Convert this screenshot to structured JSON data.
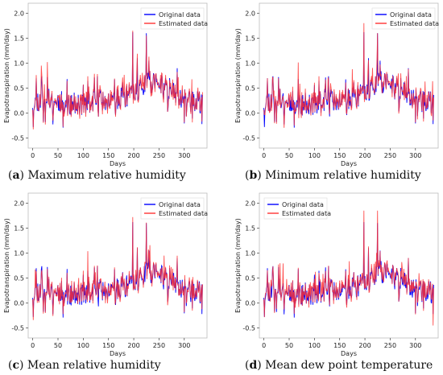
{
  "chart_data": [
    {
      "type": "line",
      "caption": {
        "letter": "(a)",
        "text": "Maximum relative humidity"
      },
      "xlabel": "Days",
      "ylabel": "Evapotranspiration (mm/day)",
      "xlim": [
        -9,
        345
      ],
      "ylim": [
        -0.7,
        2.2
      ],
      "xticks": [
        0,
        50,
        100,
        150,
        200,
        250,
        300
      ],
      "yticks": [
        -0.5,
        0.0,
        0.5,
        1.0,
        1.5,
        2.0
      ],
      "legend": "top-right",
      "series": [
        {
          "name": "Original data",
          "color": "#0000ff",
          "seed": 11
        },
        {
          "name": "Estimated data",
          "color": "#ff3333",
          "seed": 21
        }
      ]
    },
    {
      "type": "line",
      "caption": {
        "letter": "(b)",
        "text": "Minimum relative humidity"
      },
      "xlabel": "Days",
      "ylabel": "Evapotranspiration (mm/day)",
      "xlim": [
        -9,
        345
      ],
      "ylim": [
        -0.7,
        2.2
      ],
      "xticks": [
        0,
        50,
        100,
        150,
        200,
        250,
        300
      ],
      "yticks": [
        -0.5,
        0.0,
        0.5,
        1.0,
        1.5,
        2.0
      ],
      "legend": "top-right",
      "series": [
        {
          "name": "Original data",
          "color": "#0000ff",
          "seed": 11
        },
        {
          "name": "Estimated data",
          "color": "#ff3333",
          "seed": 37
        }
      ]
    },
    {
      "type": "line",
      "caption": {
        "letter": "(c)",
        "text": "Mean relative humidity"
      },
      "xlabel": "Days",
      "ylabel": "Evapotranspiration (mm/day)",
      "xlim": [
        -9,
        345
      ],
      "ylim": [
        -0.7,
        2.2
      ],
      "xticks": [
        0,
        50,
        100,
        150,
        200,
        250,
        300
      ],
      "yticks": [
        -0.5,
        0.0,
        0.5,
        1.0,
        1.5,
        2.0
      ],
      "legend": "top-right",
      "series": [
        {
          "name": "Original data",
          "color": "#0000ff",
          "seed": 11
        },
        {
          "name": "Estimated data",
          "color": "#ff3333",
          "seed": 53
        }
      ]
    },
    {
      "type": "line",
      "caption": {
        "letter": "(d)",
        "text": "Mean dew point temperature"
      },
      "xlabel": "Days",
      "ylabel": "Evapotranspiration (mm/day)",
      "xlim": [
        -9,
        345
      ],
      "ylim": [
        -0.7,
        2.2
      ],
      "xticks": [
        0,
        50,
        100,
        150,
        200,
        250,
        300
      ],
      "yticks": [
        -0.5,
        0.0,
        0.5,
        1.0,
        1.5,
        2.0
      ],
      "legend": "top-left",
      "series": [
        {
          "name": "Original data",
          "color": "#0000ff",
          "seed": 11
        },
        {
          "name": "Estimated data",
          "color": "#ff3333",
          "seed": 71
        }
      ]
    }
  ]
}
